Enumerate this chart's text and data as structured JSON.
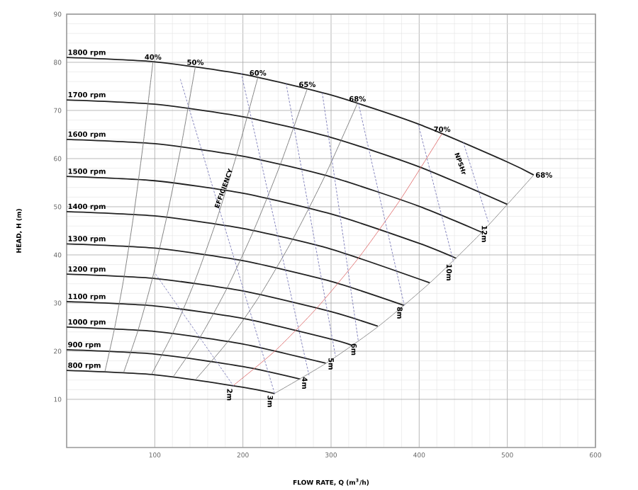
{
  "chart_data": {
    "type": "line",
    "xlabel": "FLOW RATE, Q (m$^{3}$/h)",
    "ylabel": "HEAD, H (m)",
    "xlim": [
      0,
      600
    ],
    "ylim": [
      0,
      90
    ],
    "xticks": [
      100,
      200,
      300,
      400,
      500,
      600
    ],
    "yticks": [
      10,
      20,
      30,
      40,
      50,
      60,
      70,
      80,
      90
    ],
    "grid": true,
    "marker": "none",
    "series": [
      {
        "name": "1800 rpm",
        "color": "#222222",
        "line_style": "solid",
        "x": [
          0,
          100,
          200,
          300,
          400,
          500,
          530
        ],
        "values": [
          81,
          80.1,
          77.5,
          73.2,
          67.1,
          59.3,
          56.6
        ]
      },
      {
        "name": "1700 rpm",
        "color": "#222222",
        "line_style": "solid",
        "x": [
          0,
          100,
          200,
          300,
          400,
          500
        ],
        "values": [
          72.2,
          71.3,
          68.7,
          64.4,
          58.3,
          50.5
        ]
      },
      {
        "name": "1600 rpm",
        "color": "#222222",
        "line_style": "solid",
        "x": [
          0,
          100,
          200,
          300,
          400,
          471
        ],
        "values": [
          64,
          63.1,
          60.5,
          56.2,
          50.1,
          44.7
        ]
      },
      {
        "name": "1500 rpm",
        "color": "#222222",
        "line_style": "solid",
        "x": [
          0,
          100,
          200,
          300,
          400,
          442
        ],
        "values": [
          56.3,
          55.4,
          52.8,
          48.5,
          42.4,
          39.3
        ]
      },
      {
        "name": "1400 rpm",
        "color": "#222222",
        "line_style": "solid",
        "x": [
          0,
          100,
          200,
          300,
          412
        ],
        "values": [
          49,
          48.1,
          45.5,
          41.2,
          34.2
        ]
      },
      {
        "name": "1300 rpm",
        "color": "#222222",
        "line_style": "solid",
        "x": [
          0,
          100,
          200,
          300,
          383
        ],
        "values": [
          42.3,
          41.4,
          38.8,
          34.5,
          29.5
        ]
      },
      {
        "name": "1200 rpm",
        "color": "#222222",
        "line_style": "solid",
        "x": [
          0,
          100,
          200,
          300,
          353
        ],
        "values": [
          36,
          35.1,
          32.5,
          28.2,
          25.2
        ]
      },
      {
        "name": "1100 rpm",
        "color": "#222222",
        "line_style": "solid",
        "x": [
          0,
          100,
          200,
          300,
          324
        ],
        "values": [
          30.3,
          29.4,
          26.8,
          22.5,
          21.2
        ]
      },
      {
        "name": "1000 rpm",
        "color": "#222222",
        "line_style": "solid",
        "x": [
          0,
          100,
          200,
          294
        ],
        "values": [
          25,
          24.1,
          21.5,
          17.5
        ]
      },
      {
        "name": "900 rpm",
        "color": "#222222",
        "line_style": "solid",
        "x": [
          0,
          100,
          200,
          265
        ],
        "values": [
          20.3,
          19.4,
          16.8,
          14.2
        ]
      },
      {
        "name": "800 rpm",
        "color": "#222222",
        "line_style": "solid",
        "x": [
          0,
          100,
          200,
          236
        ],
        "values": [
          16,
          15.1,
          12.5,
          11.2
        ]
      },
      {
        "color": "#777777",
        "line_style": "solid",
        "x": [
          43.6,
          54.4,
          65.3,
          76.2,
          87.1,
          98
        ],
        "values": [
          15.9,
          24.8,
          35.6,
          48.5,
          63.4,
          80.2
        ]
      },
      {
        "color": "#777777",
        "line_style": "solid",
        "x": [
          64.9,
          81.1,
          97.3,
          113.6,
          129.8,
          146
        ],
        "values": [
          15.7,
          24.4,
          35.1,
          47.9,
          62.5,
          79.1
        ]
      },
      {
        "color": "#777777",
        "line_style": "solid",
        "x": [
          96.4,
          120.6,
          144.7,
          168.8,
          192.9,
          217
        ],
        "values": [
          15.2,
          23.8,
          34.2,
          46.5,
          60.8,
          76.9
        ]
      },
      {
        "color": "#777777",
        "line_style": "solid",
        "x": [
          121.3,
          151.7,
          182,
          212.3,
          242.7,
          273
        ],
        "values": [
          14.8,
          23,
          33.1,
          45.1,
          58.9,
          74.5
        ]
      },
      {
        "color": "#777777",
        "line_style": "solid",
        "x": [
          146.7,
          183.3,
          220,
          256.7,
          293.3,
          330
        ],
        "values": [
          14.2,
          22.1,
          31.8,
          43.3,
          56.5,
          71.5
        ]
      },
      {
        "color": "#e07070",
        "line_style": "solid",
        "x": [
          189.3,
          236.7,
          284,
          331.3,
          378.7,
          426
        ],
        "values": [
          12.9,
          20.1,
          29,
          39.4,
          51.5,
          65.2
        ]
      },
      {
        "color": "#888888",
        "line_style": "solid",
        "x": [
          235.6,
          294.4,
          353.3,
          412.2,
          471.1,
          530
        ],
        "values": [
          11.2,
          17.5,
          25.1,
          34.2,
          44.7,
          56.6
        ]
      },
      {
        "color": "#7a7ab8",
        "line_style": "dashed",
        "x": [
          101,
          190
        ],
        "values": [
          36,
          12.6
        ]
      },
      {
        "color": "#7a7ab8",
        "line_style": "dashed",
        "x": [
          129,
          236
        ],
        "values": [
          76.5,
          11.2
        ]
      },
      {
        "color": "#7a7ab8",
        "line_style": "dashed",
        "x": [
          198,
          275
        ],
        "values": [
          77.8,
          15
        ]
      },
      {
        "color": "#7a7ab8",
        "line_style": "dashed",
        "x": [
          249,
          305
        ],
        "values": [
          75.6,
          19
        ]
      },
      {
        "color": "#7a7ab8",
        "line_style": "dashed",
        "x": [
          290,
          331
        ],
        "values": [
          73.7,
          22
        ]
      },
      {
        "color": "#7a7ab8",
        "line_style": "dashed",
        "x": [
          331,
          383
        ],
        "values": [
          71.5,
          29.6
        ]
      },
      {
        "color": "#7a7ab8",
        "line_style": "dashed",
        "x": [
          399,
          439
        ],
        "values": [
          67.1,
          38.5
        ]
      },
      {
        "color": "#7a7ab8",
        "line_style": "dashed",
        "x": [
          450,
          479
        ],
        "values": [
          63.4,
          46.5
        ]
      }
    ],
    "annotations": [
      {
        "text": "40%",
        "x": 98,
        "y": 80.2
      },
      {
        "text": "50%",
        "x": 146,
        "y": 79.1
      },
      {
        "text": "60%",
        "x": 217,
        "y": 76.9
      },
      {
        "text": "65%",
        "x": 273,
        "y": 74.5
      },
      {
        "text": "68%",
        "x": 330,
        "y": 71.5
      },
      {
        "text": "70%",
        "x": 426,
        "y": 65.2
      },
      {
        "text": "68%",
        "x": 530,
        "y": 56.6
      },
      {
        "text": "2m",
        "x": 190,
        "y": 12.6
      },
      {
        "text": "3m",
        "x": 236,
        "y": 11.2
      },
      {
        "text": "4m",
        "x": 275,
        "y": 15
      },
      {
        "text": "5m",
        "x": 305,
        "y": 19
      },
      {
        "text": "6m",
        "x": 331,
        "y": 22
      },
      {
        "text": "8m",
        "x": 383,
        "y": 29.6
      },
      {
        "text": "10m",
        "x": 439,
        "y": 38.5
      },
      {
        "text": "12m",
        "x": 479,
        "y": 46.5
      },
      {
        "text": "EFFICIENCY",
        "x": 178,
        "y": 53.8
      },
      "NPSHr"
    ]
  }
}
